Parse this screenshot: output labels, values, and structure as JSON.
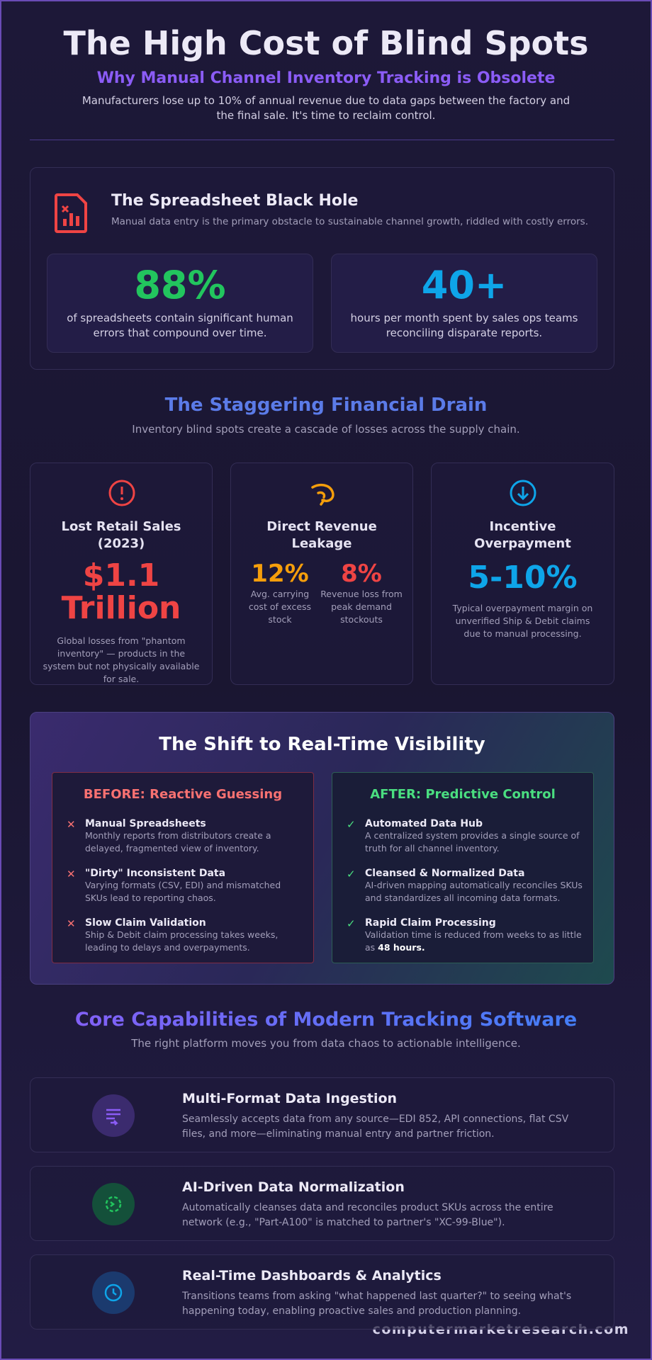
{
  "header": {
    "title": "The High Cost of Blind Spots",
    "subtitle": "Why Manual Channel Inventory Tracking is Obsolete",
    "intro": "Manufacturers lose up to 10% of annual revenue due to data gaps between the factory and the final sale. It's time to reclaim control."
  },
  "spreadsheet": {
    "title": "The Spreadsheet Black Hole",
    "description": "Manual data entry is the primary obstacle to sustainable channel growth, riddled with costly errors.",
    "stats": [
      {
        "value": "88%",
        "text": "of spreadsheets contain significant human errors that compound over time."
      },
      {
        "value": "40+",
        "text": "hours per month spent by sales ops teams reconciling disparate reports."
      }
    ]
  },
  "drain": {
    "title": "The Staggering Financial Drain",
    "subtitle": "Inventory blind spots create a cascade of losses across the supply chain.",
    "cards": [
      {
        "title": "Lost Retail Sales (2023)",
        "value": "$1.1 Trillion",
        "text": "Global losses from \"phantom inventory\" — products in the system but not physically available for sale."
      },
      {
        "title": "Direct Revenue Leakage",
        "stats": [
          {
            "value": "12%",
            "text": "Avg. carrying cost of excess stock"
          },
          {
            "value": "8%",
            "text": "Revenue loss from peak demand stockouts"
          }
        ]
      },
      {
        "title": "Incentive Overpayment",
        "value": "5-10%",
        "text": "Typical overpayment margin on unverified Ship & Debit claims due to manual processing."
      }
    ]
  },
  "shift": {
    "title": "The Shift to Real-Time Visibility",
    "before": {
      "title": "BEFORE: Reactive Guessing",
      "items": [
        {
          "title": "Manual Spreadsheets",
          "text": "Monthly reports from distributors create a delayed, fragmented view of inventory."
        },
        {
          "title": "\"Dirty\" Inconsistent Data",
          "text": "Varying formats (CSV, EDI) and mismatched SKUs lead to reporting chaos."
        },
        {
          "title": "Slow Claim Validation",
          "text": "Ship & Debit claim processing takes weeks, leading to delays and overpayments."
        }
      ]
    },
    "after": {
      "title": "AFTER: Predictive Control",
      "items": [
        {
          "title": "Automated Data Hub",
          "text": "A centralized system provides a single source of truth for all channel inventory."
        },
        {
          "title": "Cleansed & Normalized Data",
          "text": "AI-driven mapping automatically reconciles SKUs and standardizes all incoming data formats."
        },
        {
          "title": "Rapid Claim Processing",
          "text": "Validation time is reduced from weeks to as little as ",
          "bold": "48 hours."
        }
      ]
    }
  },
  "capabilities": {
    "title": "Core Capabilities of Modern Tracking Software",
    "subtitle": "The right platform moves you from data chaos to actionable intelligence.",
    "features": [
      {
        "title": "Multi-Format Data Ingestion",
        "text": "Seamlessly accepts data from any source—EDI 852, API connections, flat CSV files, and more—eliminating manual entry and partner friction."
      },
      {
        "title": "AI-Driven Data Normalization",
        "text": "Automatically cleanses data and reconciles product SKUs across the entire network (e.g., \"Part-A100\" is matched to partner's \"XC-99-Blue\")."
      },
      {
        "title": "Real-Time Dashboards & Analytics",
        "text": "Transitions teams from asking \"what happened last quarter?\" to seeing what's happening today, enabling proactive sales and production planning."
      }
    ]
  },
  "footer": {
    "site": "computermarketresearch.com"
  }
}
